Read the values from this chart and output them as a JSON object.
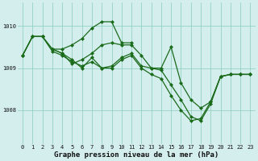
{
  "title": "Graphe pression niveau de la mer (hPa)",
  "background_color": "#d4eeee",
  "line_color": "#1a6b1a",
  "grid_color": "#88ccbb",
  "xlim": [
    -0.5,
    23.5
  ],
  "ylim": [
    1007.2,
    1010.55
  ],
  "yticks": [
    1008,
    1009,
    1010
  ],
  "xticks": [
    0,
    1,
    2,
    3,
    4,
    5,
    6,
    7,
    8,
    9,
    10,
    11,
    12,
    13,
    14,
    15,
    16,
    17,
    18,
    19,
    20,
    21,
    22,
    23
  ],
  "series": [
    {
      "x": [
        0,
        1,
        2,
        3,
        4,
        5,
        6,
        7,
        8,
        9,
        10,
        11
      ],
      "y": [
        1009.3,
        1009.75,
        1009.75,
        1009.45,
        1009.45,
        1009.55,
        1009.7,
        1009.95,
        1010.1,
        1010.1,
        1009.6,
        1009.6
      ]
    },
    {
      "x": [
        0,
        1,
        2,
        3,
        4,
        5,
        6,
        7,
        8,
        9,
        10,
        11,
        12,
        13,
        14,
        15,
        16,
        17,
        18,
        19,
        20,
        21,
        22,
        23
      ],
      "y": [
        1009.3,
        1009.75,
        1009.75,
        1009.45,
        1009.35,
        1009.2,
        1009.0,
        1009.25,
        1009.0,
        1009.05,
        1009.25,
        1009.35,
        1009.05,
        1009.0,
        1008.95,
        1008.6,
        1008.25,
        1007.85,
        1007.75,
        1008.15,
        1008.8,
        1008.85,
        1008.85,
        1008.85
      ]
    },
    {
      "x": [
        0,
        1,
        2,
        3,
        4,
        5,
        6,
        7,
        8,
        9,
        10,
        11,
        12,
        13,
        14,
        15,
        16,
        17,
        18,
        19,
        20,
        21,
        22,
        23
      ],
      "y": [
        1009.3,
        1009.75,
        1009.75,
        1009.4,
        1009.3,
        1009.15,
        1009.05,
        1009.15,
        1009.0,
        1009.0,
        1009.2,
        1009.3,
        1009.0,
        1008.85,
        1008.75,
        1008.35,
        1008.0,
        1007.75,
        1007.8,
        1008.2,
        1008.8,
        1008.85,
        1008.85,
        1008.85
      ]
    },
    {
      "x": [
        3,
        4,
        5,
        6,
        7,
        8,
        9,
        10,
        11,
        12,
        13,
        14,
        15,
        16,
        17,
        18,
        19,
        20,
        21,
        22,
        23
      ],
      "y": [
        1009.45,
        1009.35,
        1009.1,
        1009.2,
        1009.35,
        1009.55,
        1009.6,
        1009.55,
        1009.55,
        1009.3,
        1009.0,
        1009.0,
        1009.5,
        1008.65,
        1008.25,
        1008.05,
        1008.2,
        1008.8,
        1008.85,
        1008.85,
        1008.85
      ]
    }
  ],
  "marker": "D",
  "markersize": 2.0,
  "linewidth": 0.9,
  "tick_fontsize": 5.0,
  "label_fontsize": 6.5,
  "label_fontweight": "bold"
}
